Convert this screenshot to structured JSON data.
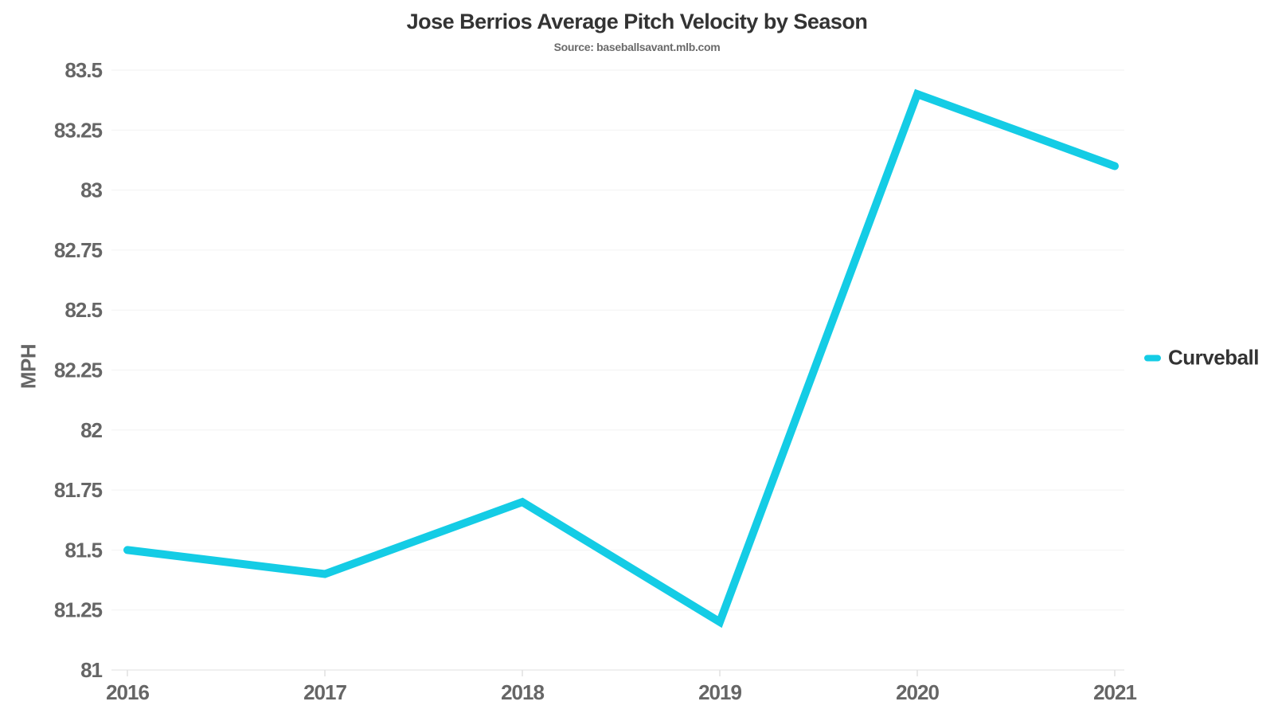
{
  "chart_data": {
    "type": "line",
    "title": "Jose Berrios Average Pitch Velocity by Season",
    "subtitle": "Source: baseballsavant.mlb.com",
    "xlabel": "",
    "ylabel": "MPH",
    "categories": [
      "2016",
      "2017",
      "2018",
      "2019",
      "2020",
      "2021"
    ],
    "series": [
      {
        "name": "Curveball",
        "color": "#14CCE5",
        "values": [
          81.5,
          81.4,
          81.7,
          81.2,
          83.4,
          83.1
        ]
      }
    ],
    "ylim": [
      81,
      83.5
    ],
    "y_tick_step": 0.25,
    "y_ticks": [
      81,
      81.25,
      81.5,
      81.75,
      82,
      82.25,
      82.5,
      82.75,
      83,
      83.25,
      83.5
    ],
    "grid": true,
    "legend_position": "right",
    "colors": {
      "title_text": "#333333",
      "subtitle_text": "#6b6b6b",
      "axis_label_text": "#666666",
      "gridline": "#f2f2f2",
      "axis_line": "#e0e0e0"
    }
  }
}
